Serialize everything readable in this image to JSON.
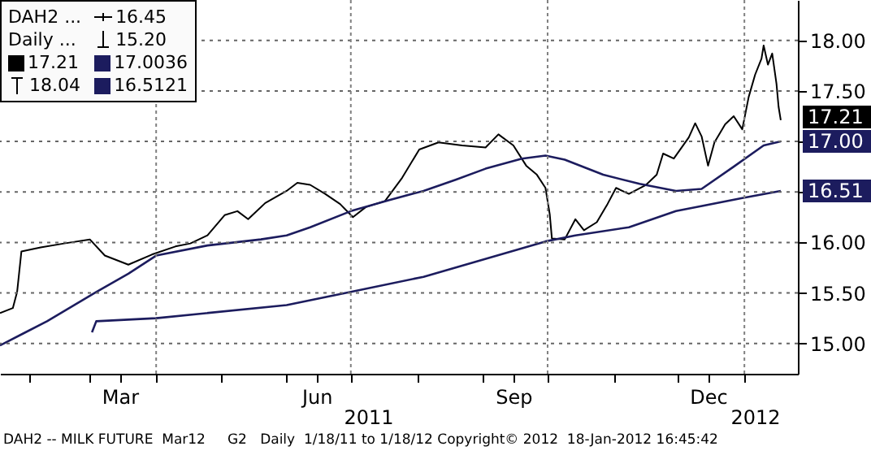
{
  "chart_data": {
    "type": "line",
    "annotations": [
      {
        "text": "DAH2 ..."
      },
      {
        "text": "16.45"
      },
      {
        "text": "Daily ..."
      },
      {
        "text": "15.20"
      },
      {
        "text": "18.04"
      },
      "2011",
      "2012",
      "DAH2 -- MILK FUTURE  Mar12     G2   Daily  1/18/11 to 1/18/12 Copyright© 2012  18-Jan-2012 16:45:42"
    ],
    "xlim": [
      "2011-01-18",
      "2012-01-26"
    ],
    "xticks": [
      {
        "value": "2011-02-01",
        "label": null
      },
      {
        "value": "2011-03-01",
        "label": null
      },
      {
        "value": "2011-03-15",
        "label": "Mar"
      },
      {
        "value": "2011-04-01",
        "label": null
      },
      {
        "value": "2011-05-01",
        "label": null
      },
      {
        "value": "2011-06-01",
        "label": null
      },
      {
        "value": "2011-06-15",
        "label": "Jun"
      },
      {
        "value": "2011-07-01",
        "label": null
      },
      {
        "value": "2011-08-01",
        "label": null
      },
      {
        "value": "2011-09-01",
        "label": null
      },
      {
        "value": "2011-09-15",
        "label": "Sep"
      },
      {
        "value": "2011-10-01",
        "label": null
      },
      {
        "value": "2011-11-01",
        "label": null
      },
      {
        "value": "2011-12-01",
        "label": null
      },
      {
        "value": "2011-12-15",
        "label": "Dec"
      },
      {
        "value": "2012-01-01",
        "label": null
      }
    ],
    "ylim": [
      14.7,
      18.4
    ],
    "yticks": [
      {
        "value": 15,
        "label": "15.00"
      },
      {
        "value": 15.5,
        "label": "15.50"
      },
      {
        "value": 16,
        "label": "16.00"
      },
      {
        "value": 16.5,
        "label": null
      },
      {
        "value": 17,
        "label": null
      },
      {
        "value": 17.5,
        "label": "17.50"
      },
      {
        "value": 18,
        "label": "18.00"
      }
    ],
    "grid": "y",
    "legend": "top left",
    "marker": "none",
    "line_style": "solid",
    "ref_lines": [
      {
        "axis": "x",
        "value": "2011-04-01",
        "color": "#808080",
        "line_style": "dotted"
      },
      {
        "axis": "x",
        "value": "2011-07-01",
        "color": "#808080",
        "line_style": "dotted"
      },
      {
        "axis": "x",
        "value": "2011-10-01",
        "color": "#808080",
        "line_style": "dotted"
      },
      {
        "axis": "x",
        "value": "2012-01-01",
        "color": "#808080",
        "line_style": "dotted"
      }
    ],
    "series": [
      {
        "name": "17.21",
        "color": "#000000",
        "x": [
          "2011-01-18",
          "2011-01-24",
          "2011-01-26",
          "2011-01-28",
          "2011-02-06",
          "2011-02-17",
          "2011-03-01",
          "2011-03-08",
          "2011-03-19",
          "2011-03-30",
          "2011-04-10",
          "2011-04-17",
          "2011-04-25",
          "2011-05-03",
          "2011-05-09",
          "2011-05-14",
          "2011-05-22",
          "2011-06-01",
          "2011-06-06",
          "2011-06-12",
          "2011-06-19",
          "2011-06-26",
          "2011-07-02",
          "2011-07-08",
          "2011-07-17",
          "2011-07-25",
          "2011-08-02",
          "2011-08-11",
          "2011-08-22",
          "2011-09-02",
          "2011-09-08",
          "2011-09-15",
          "2011-09-21",
          "2011-09-26",
          "2011-09-30",
          "2011-10-02",
          "2011-10-03",
          "2011-10-09",
          "2011-10-14",
          "2011-10-18",
          "2011-10-24",
          "2011-10-29",
          "2011-11-02",
          "2011-11-08",
          "2011-11-16",
          "2011-11-21",
          "2011-11-24",
          "2011-11-29",
          "2011-12-06",
          "2011-12-09",
          "2011-12-12",
          "2011-12-15",
          "2011-12-18",
          "2011-12-23",
          "2011-12-27",
          "2011-12-31",
          "2012-01-03",
          "2012-01-06",
          "2012-01-09",
          "2012-01-10",
          "2012-01-12",
          "2012-01-14",
          "2012-01-16",
          "2012-01-17",
          "2012-01-18"
        ],
        "values": [
          15.3,
          15.35,
          15.51,
          15.91,
          15.95,
          15.99,
          16.03,
          15.87,
          15.78,
          15.88,
          15.96,
          15.99,
          16.07,
          16.27,
          16.31,
          16.23,
          16.39,
          16.51,
          16.59,
          16.57,
          16.48,
          16.38,
          16.25,
          16.35,
          16.41,
          16.64,
          16.92,
          16.99,
          16.96,
          16.94,
          17.07,
          16.96,
          16.76,
          16.67,
          16.54,
          16.28,
          16.04,
          16.03,
          16.23,
          16.12,
          16.2,
          16.38,
          16.54,
          16.48,
          16.57,
          16.67,
          16.88,
          16.83,
          17.04,
          17.18,
          17.05,
          16.76,
          16.99,
          17.17,
          17.25,
          17.12,
          17.44,
          17.66,
          17.82,
          17.95,
          17.76,
          17.87,
          17.57,
          17.34,
          17.21
        ],
        "value_labels": [
          null,
          null,
          null,
          null,
          null,
          null,
          null,
          null,
          null,
          null,
          null,
          null,
          null,
          null,
          null,
          null,
          null,
          null,
          null,
          null,
          null,
          null,
          null,
          null,
          null,
          null,
          null,
          null,
          null,
          null,
          null,
          null,
          null,
          null,
          null,
          null,
          null,
          null,
          null,
          null,
          null,
          null,
          null,
          null,
          null,
          null,
          null,
          null,
          null,
          null,
          null,
          null,
          null,
          null,
          null,
          null,
          null,
          null,
          null,
          null,
          null,
          null,
          null,
          null,
          "17.21"
        ]
      },
      {
        "name": "17.0036",
        "color": "#1c1c5e",
        "x": [
          "2011-01-18",
          "2011-01-29",
          "2011-02-09",
          "2011-03-04",
          "2011-03-19",
          "2011-04-01",
          "2011-04-25",
          "2011-05-20",
          "2011-06-01",
          "2011-06-12",
          "2011-07-01",
          "2011-07-19",
          "2011-08-04",
          "2011-08-19",
          "2011-09-02",
          "2011-09-19",
          "2011-09-30",
          "2011-10-09",
          "2011-10-27",
          "2011-11-13",
          "2011-11-30",
          "2011-12-12",
          "2011-12-27",
          "2012-01-10",
          "2012-01-18"
        ],
        "values": [
          14.98,
          15.1,
          15.22,
          15.51,
          15.69,
          15.87,
          15.97,
          16.03,
          16.07,
          16.15,
          16.31,
          16.42,
          16.51,
          16.62,
          16.73,
          16.83,
          16.86,
          16.82,
          16.67,
          16.58,
          16.51,
          16.53,
          16.75,
          16.96,
          17.0
        ],
        "value_labels": [
          null,
          null,
          null,
          null,
          null,
          null,
          null,
          null,
          null,
          null,
          null,
          null,
          null,
          null,
          null,
          null,
          null,
          null,
          null,
          null,
          null,
          null,
          null,
          null,
          "17.00"
        ]
      },
      {
        "name": "16.5121",
        "color": "#1c1c5e",
        "x": [
          "2011-03-02",
          "2011-03-04",
          "2011-04-01",
          "2011-06-01",
          "2011-07-01",
          "2011-08-04",
          "2011-09-30",
          "2011-10-14",
          "2011-11-08",
          "2011-11-30",
          "2011-12-31",
          "2012-01-18"
        ],
        "values": [
          15.11,
          15.22,
          15.25,
          15.38,
          15.51,
          15.66,
          16.01,
          16.07,
          16.15,
          16.31,
          16.44,
          16.51
        ],
        "value_labels": [
          null,
          null,
          null,
          null,
          null,
          null,
          null,
          null,
          null,
          null,
          null,
          "16.51"
        ]
      }
    ]
  }
}
